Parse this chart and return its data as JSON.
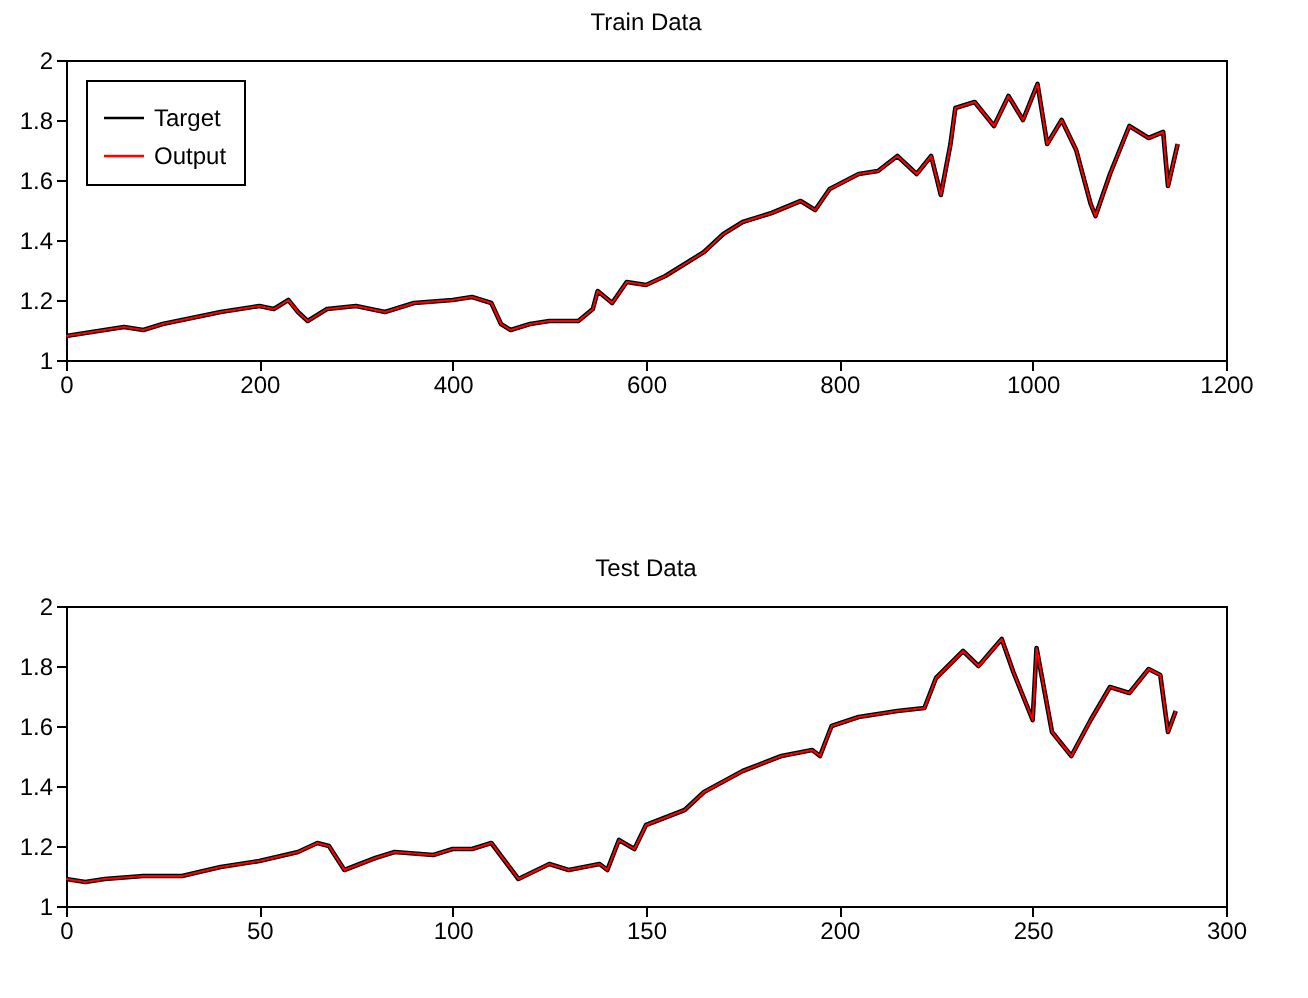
{
  "chart_data": [
    {
      "type": "line",
      "title": "Train Data",
      "xlim": [
        0,
        1200
      ],
      "xticks": [
        0,
        200,
        400,
        600,
        800,
        1000,
        1200
      ],
      "ylim": [
        1,
        2
      ],
      "yticks": [
        1,
        1.2,
        1.4,
        1.6,
        1.8,
        2
      ],
      "grid": false,
      "legend": "top left",
      "x": [
        0,
        20,
        40,
        60,
        80,
        100,
        130,
        160,
        200,
        215,
        230,
        240,
        250,
        270,
        300,
        330,
        360,
        400,
        420,
        440,
        450,
        460,
        480,
        500,
        530,
        545,
        550,
        565,
        580,
        600,
        620,
        640,
        660,
        680,
        700,
        730,
        760,
        775,
        790,
        820,
        840,
        860,
        880,
        895,
        905,
        915,
        920,
        940,
        960,
        975,
        990,
        1005,
        1015,
        1030,
        1045,
        1060,
        1065,
        1080,
        1100,
        1120,
        1135,
        1140,
        1150
      ],
      "series": [
        {
          "name": "Target",
          "color": "#000000",
          "values": [
            1.08,
            1.09,
            1.1,
            1.11,
            1.1,
            1.12,
            1.14,
            1.16,
            1.18,
            1.17,
            1.2,
            1.16,
            1.13,
            1.17,
            1.18,
            1.16,
            1.19,
            1.2,
            1.21,
            1.19,
            1.12,
            1.1,
            1.12,
            1.13,
            1.13,
            1.17,
            1.23,
            1.19,
            1.26,
            1.25,
            1.28,
            1.32,
            1.36,
            1.42,
            1.46,
            1.49,
            1.53,
            1.5,
            1.57,
            1.62,
            1.63,
            1.68,
            1.62,
            1.68,
            1.55,
            1.72,
            1.84,
            1.86,
            1.78,
            1.88,
            1.8,
            1.92,
            1.72,
            1.8,
            1.7,
            1.52,
            1.48,
            1.62,
            1.78,
            1.74,
            1.76,
            1.58,
            1.72
          ]
        },
        {
          "name": "Output",
          "color": "#ff0000",
          "values": [
            1.08,
            1.09,
            1.1,
            1.11,
            1.1,
            1.12,
            1.14,
            1.16,
            1.18,
            1.17,
            1.2,
            1.16,
            1.13,
            1.17,
            1.18,
            1.16,
            1.19,
            1.2,
            1.21,
            1.19,
            1.12,
            1.1,
            1.12,
            1.13,
            1.13,
            1.17,
            1.23,
            1.19,
            1.26,
            1.25,
            1.28,
            1.32,
            1.36,
            1.42,
            1.46,
            1.49,
            1.53,
            1.5,
            1.57,
            1.62,
            1.63,
            1.68,
            1.62,
            1.68,
            1.55,
            1.72,
            1.84,
            1.86,
            1.78,
            1.88,
            1.8,
            1.92,
            1.72,
            1.8,
            1.7,
            1.52,
            1.48,
            1.62,
            1.78,
            1.74,
            1.76,
            1.58,
            1.72
          ]
        }
      ]
    },
    {
      "type": "line",
      "title": "Test Data",
      "xlim": [
        0,
        300
      ],
      "xticks": [
        0,
        50,
        100,
        150,
        200,
        250,
        300
      ],
      "ylim": [
        1,
        2
      ],
      "yticks": [
        1,
        1.2,
        1.4,
        1.6,
        1.8,
        2
      ],
      "grid": false,
      "legend": "top left",
      "x": [
        0,
        5,
        10,
        20,
        30,
        40,
        50,
        60,
        65,
        68,
        72,
        80,
        85,
        95,
        100,
        105,
        110,
        117,
        125,
        130,
        138,
        140,
        143,
        147,
        150,
        160,
        165,
        175,
        185,
        193,
        195,
        198,
        205,
        215,
        222,
        225,
        232,
        236,
        242,
        245,
        250,
        251,
        255,
        260,
        265,
        270,
        275,
        280,
        283,
        285,
        287
      ],
      "series": [
        {
          "name": "Target",
          "color": "#000000",
          "values": [
            1.09,
            1.08,
            1.09,
            1.1,
            1.1,
            1.13,
            1.15,
            1.18,
            1.21,
            1.2,
            1.12,
            1.16,
            1.18,
            1.17,
            1.19,
            1.19,
            1.21,
            1.09,
            1.14,
            1.12,
            1.14,
            1.12,
            1.22,
            1.19,
            1.27,
            1.32,
            1.38,
            1.45,
            1.5,
            1.52,
            1.5,
            1.6,
            1.63,
            1.65,
            1.66,
            1.76,
            1.85,
            1.8,
            1.89,
            1.78,
            1.62,
            1.86,
            1.58,
            1.5,
            1.62,
            1.73,
            1.71,
            1.79,
            1.77,
            1.58,
            1.65
          ]
        },
        {
          "name": "Output",
          "color": "#ff0000",
          "values": [
            1.09,
            1.08,
            1.09,
            1.1,
            1.1,
            1.13,
            1.15,
            1.18,
            1.21,
            1.2,
            1.12,
            1.16,
            1.18,
            1.17,
            1.19,
            1.19,
            1.21,
            1.09,
            1.14,
            1.12,
            1.14,
            1.12,
            1.22,
            1.19,
            1.27,
            1.32,
            1.38,
            1.45,
            1.5,
            1.52,
            1.5,
            1.6,
            1.63,
            1.65,
            1.66,
            1.76,
            1.85,
            1.8,
            1.89,
            1.78,
            1.62,
            1.86,
            1.58,
            1.5,
            1.62,
            1.73,
            1.71,
            1.79,
            1.77,
            1.58,
            1.65
          ]
        }
      ]
    }
  ]
}
